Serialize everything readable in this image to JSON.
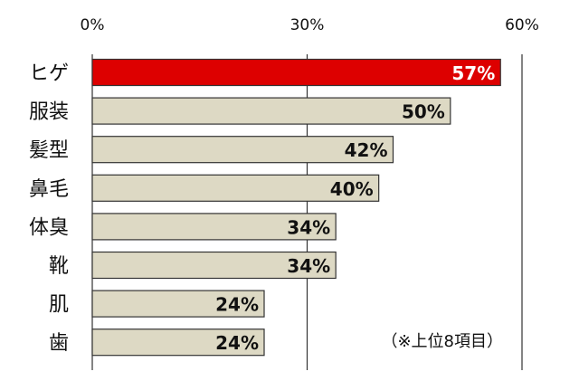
{
  "chart_data": {
    "type": "bar",
    "orientation": "horizontal",
    "categories": [
      "ヒゲ",
      "服装",
      "髪型",
      "鼻毛",
      "体臭",
      "靴",
      "肌",
      "歯"
    ],
    "values": [
      57,
      50,
      42,
      40,
      34,
      34,
      24,
      24
    ],
    "value_labels": [
      "57%",
      "50%",
      "42%",
      "40%",
      "34%",
      "34%",
      "24%",
      "24%"
    ],
    "xlim": [
      0,
      60
    ],
    "x_ticks": [
      0,
      30,
      60
    ],
    "x_tick_labels": [
      "0%",
      "30%",
      "60%"
    ],
    "x_axis_position": "top",
    "grid": true,
    "highlight_index": 0,
    "colors": {
      "highlight_fill": "#dd0000",
      "highlight_label": "#ffffff",
      "bar_fill": "#ddd9c4",
      "bar_stroke": "#333333",
      "label": "#111111",
      "grid": "#333333"
    },
    "annotation": "（※上位8項目）"
  }
}
